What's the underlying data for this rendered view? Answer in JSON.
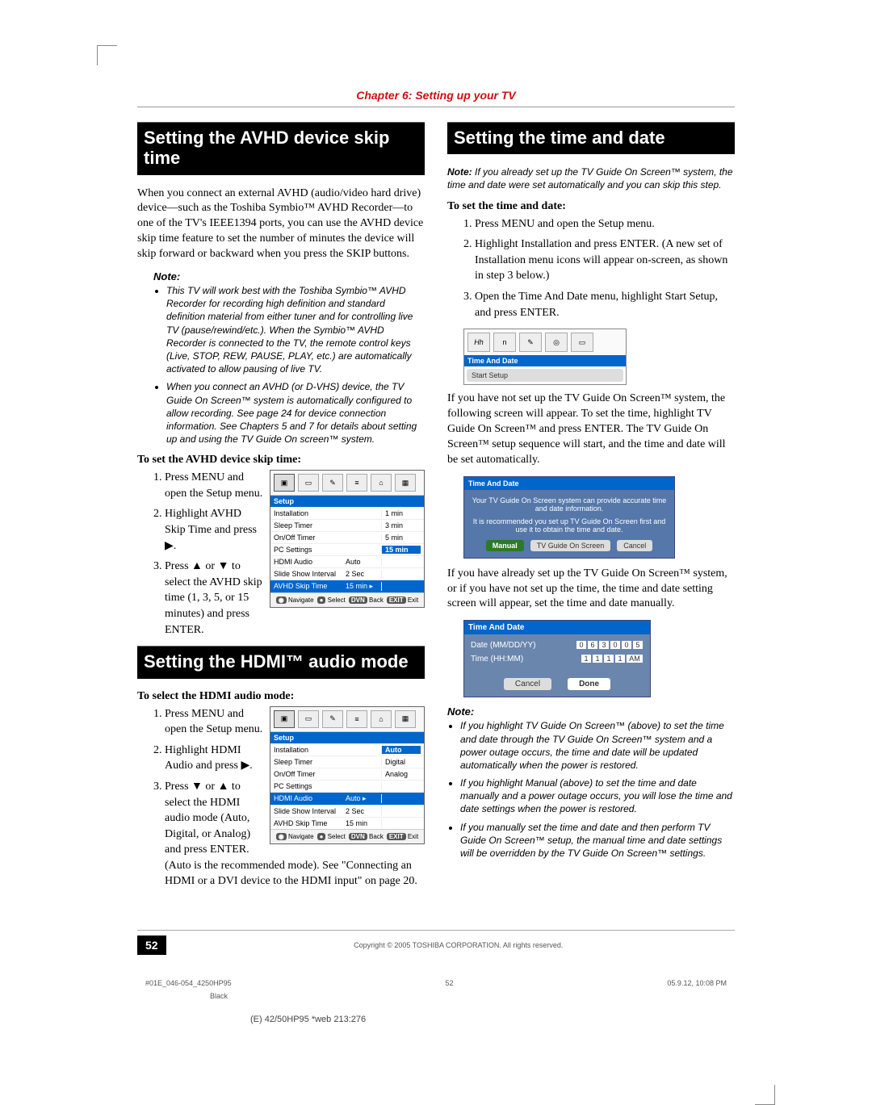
{
  "chapter_header": "Chapter 6: Setting up your TV",
  "left": {
    "sec1": {
      "title": "Setting the AVHD device skip time",
      "intro": "When you connect an external AVHD (audio/video hard drive) device—such as the Toshiba Symbio™ AVHD Recorder—to one of the TV's IEEE1394 ports, you can use the AVHD device skip time feature to set the number of minutes the device will skip forward or backward when you press the SKIP buttons.",
      "note_label": "Note:",
      "notes": [
        "This TV will work best with the Toshiba Symbio™ AVHD Recorder for recording high definition and standard definition material from either tuner and for controlling live TV (pause/rewind/etc.). When the Symbio™ AVHD Recorder is connected to the TV, the remote control keys (Live, STOP, REW, PAUSE, PLAY, etc.) are automatically activated to allow pausing of live TV.",
        "When you connect an AVHD (or D-VHS) device, the TV Guide On Screen™ system is automatically configured to allow recording. See page 24 for device connection information. See Chapters 5 and 7 for details about setting up and using the TV Guide On screen™ system."
      ],
      "step_head": "To set the AVHD device skip time:",
      "steps": [
        "Press MENU and open the Setup menu.",
        "Highlight AVHD Skip Time and press ▶.",
        "Press ▲ or ▼ to select the AVHD skip time (1, 3, 5, or 15 minutes) and press ENTER."
      ],
      "menu": {
        "title": "Setup",
        "rows": [
          {
            "c1": "Installation",
            "c2": "",
            "c3": "1 min"
          },
          {
            "c1": "Sleep Timer",
            "c2": "",
            "c3": "3 min"
          },
          {
            "c1": "On/Off Timer",
            "c2": "",
            "c3": "5 min"
          },
          {
            "c1": "PC Settings",
            "c2": "",
            "c3": "15 min",
            "opt_hl": true
          },
          {
            "c1": "HDMI Audio",
            "c2": "Auto",
            "c3": ""
          },
          {
            "c1": "Slide Show Interval",
            "c2": "2 Sec",
            "c3": ""
          },
          {
            "c1": "AVHD Skip Time",
            "c2": "15 min ▸",
            "c3": "",
            "hl": true
          }
        ],
        "foot": [
          "Navigate",
          "Select",
          "Back",
          "Exit"
        ]
      }
    },
    "sec2": {
      "title": "Setting the HDMI™ audio mode",
      "step_head": "To select the HDMI audio mode:",
      "steps": [
        "Press MENU and open the Setup menu.",
        "Highlight HDMI Audio and press ▶.",
        "Press ▼ or ▲ to select the HDMI audio mode (Auto, Digital, or Analog) and press ENTER. (Auto is the recommended mode). See \"Connecting an HDMI or a DVI device to the HDMI input\" on page 20."
      ],
      "menu": {
        "title": "Setup",
        "rows": [
          {
            "c1": "Installation",
            "c2": "",
            "c3": "Auto",
            "opt_hl": true
          },
          {
            "c1": "Sleep Timer",
            "c2": "",
            "c3": "Digital"
          },
          {
            "c1": "On/Off Timer",
            "c2": "",
            "c3": "Analog"
          },
          {
            "c1": "PC Settings",
            "c2": "",
            "c3": ""
          },
          {
            "c1": "HDMI Audio",
            "c2": "Auto ▸",
            "c3": "",
            "hl": true
          },
          {
            "c1": "Slide Show Interval",
            "c2": "2 Sec",
            "c3": ""
          },
          {
            "c1": "AVHD Skip Time",
            "c2": "15 min",
            "c3": ""
          }
        ],
        "foot": [
          "Navigate",
          "Select",
          "Back",
          "Exit"
        ]
      }
    }
  },
  "right": {
    "sec1": {
      "title": "Setting the time and date",
      "lead_note_label": "Note:",
      "lead_note": "If you already set up the TV Guide On Screen™ system, the time and date were set automatically and you can skip this step.",
      "step_head": "To set the time and date:",
      "steps": [
        "Press MENU and open the Setup menu.",
        "Highlight Installation and press ENTER. (A new set of Installation menu icons will appear on-screen, as shown in step 3 below.)",
        "Open the Time And Date menu, highlight Start Setup, and press ENTER."
      ],
      "small_menu": {
        "title": "Time And Date",
        "item": "Start Setup"
      },
      "para1": "If you have not set up the TV Guide On Screen™ system, the following screen will appear. To set the time, highlight TV Guide On Screen™ and press ENTER. The TV Guide On Screen™ setup sequence will start, and the time and date will be set automatically.",
      "blue_panel": {
        "title": "Time And Date",
        "line1": "Your TV Guide On Screen system can provide accurate time and date information.",
        "line2": "It is recommended you set up TV Guide On Screen first and use it to obtain the time and date.",
        "btns": [
          "Manual",
          "TV Guide On Screen",
          "Cancel"
        ],
        "hl_idx": 0
      },
      "para2": "If you have already set up the TV Guide On Screen™ system, or if you have not set up the time, the time and date setting screen will appear, set the time and date manually.",
      "date_panel": {
        "title": "Time And Date",
        "date_label": "Date (MM/DD/YY)",
        "date_digits": [
          "0",
          "6",
          "3",
          "0",
          "0",
          "5"
        ],
        "time_label": "Time (HH:MM)",
        "time_digits": [
          "1",
          "1",
          "1",
          "1",
          "AM"
        ],
        "btns": [
          "Cancel",
          "Done"
        ],
        "hl_idx": 1
      },
      "note_label": "Note:",
      "notes": [
        "If you highlight TV Guide On Screen™ (above) to set the time and date through the TV Guide On Screen™ system and a power outage occurs, the time and date will be updated automatically when the power is restored.",
        "If you highlight Manual (above) to set the time and date manually and a power outage occurs, you will lose the time and date settings when the power is restored.",
        "If you manually set the time and date and then perform TV Guide On Screen™ setup, the manual time and date settings will be overridden by the TV Guide On Screen™ settings."
      ]
    }
  },
  "footer": {
    "page": "52",
    "copyright": "Copyright © 2005 TOSHIBA CORPORATION. All rights reserved.",
    "meta_left": "#01E_046-054_4250HP95",
    "meta_mid": "52",
    "meta_right": "05.9.12, 10:08 PM",
    "meta_black": "Black",
    "bottom": "(E) 42/50HP95 *web 213:276"
  }
}
